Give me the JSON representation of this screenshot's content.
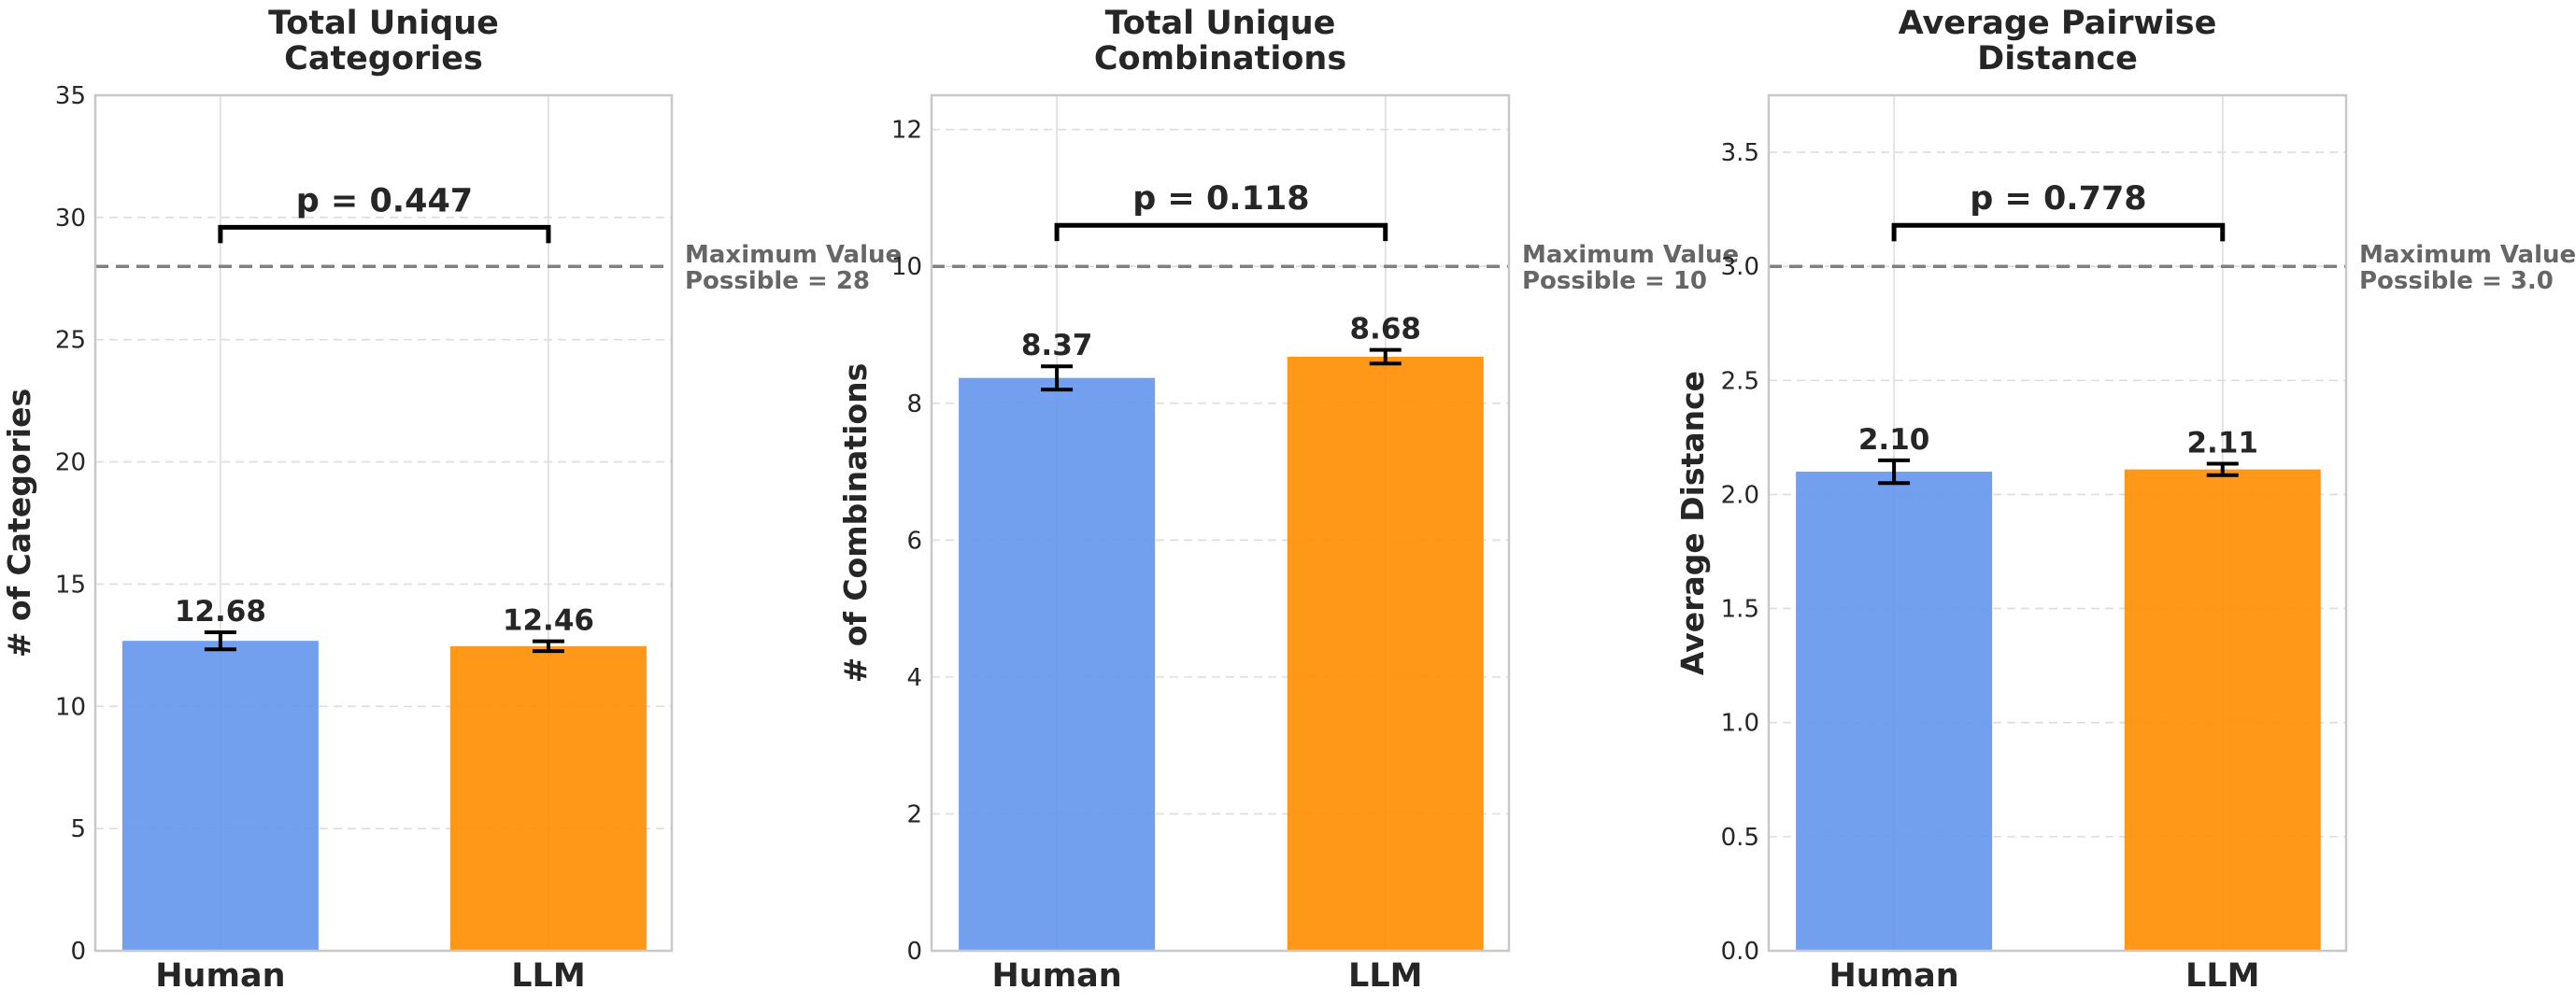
{
  "colors": {
    "human": "#6495ED",
    "llm": "#FF8C00",
    "grid": "#dddddd",
    "frame": "#c8c8c8",
    "text": "#262626",
    "annotation": "#666666"
  },
  "chart_data": [
    {
      "type": "bar",
      "title": [
        "Total Unique",
        "Categories"
      ],
      "ylabel": "# of Categories",
      "xlabel": "",
      "categories": [
        "Human",
        "LLM"
      ],
      "values": [
        12.68,
        12.46
      ],
      "errors": [
        0.35,
        0.2
      ],
      "value_labels": [
        "12.68",
        "12.46"
      ],
      "ylim": [
        0,
        35
      ],
      "yticks": [
        0,
        5,
        10,
        15,
        20,
        25,
        30,
        35
      ],
      "ytick_labels": [
        "0",
        "5",
        "10",
        "15",
        "20",
        "25",
        "30",
        "35"
      ],
      "grid": true,
      "max_line": {
        "value": 28,
        "label": [
          "Maximum Value",
          "Possible = 28"
        ]
      },
      "significance": {
        "text": "p = 0.447",
        "bracket_y": 29.6,
        "drop": 0.65
      }
    },
    {
      "type": "bar",
      "title": [
        "Total Unique",
        "Combinations"
      ],
      "ylabel": "# of Combinations",
      "xlabel": "",
      "categories": [
        "Human",
        "LLM"
      ],
      "values": [
        8.37,
        8.68
      ],
      "errors": [
        0.17,
        0.1
      ],
      "value_labels": [
        "8.37",
        "8.68"
      ],
      "ylim": [
        0,
        12.5
      ],
      "yticks": [
        0,
        2,
        4,
        6,
        8,
        10,
        12
      ],
      "ytick_labels": [
        "0",
        "2",
        "4",
        "6",
        "8",
        "10",
        "12"
      ],
      "grid": true,
      "max_line": {
        "value": 10,
        "label": [
          "Maximum Value",
          "Possible = 10"
        ]
      },
      "significance": {
        "text": "p = 0.118",
        "bracket_y": 10.6,
        "drop": 0.23
      }
    },
    {
      "type": "bar",
      "title": [
        "Average Pairwise",
        "Distance"
      ],
      "ylabel": "Average Distance",
      "xlabel": "",
      "categories": [
        "Human",
        "LLM"
      ],
      "values": [
        2.1,
        2.11
      ],
      "errors": [
        0.05,
        0.025
      ],
      "value_labels": [
        "2.10",
        "2.11"
      ],
      "ylim": [
        0,
        3.75
      ],
      "yticks": [
        0,
        0.5,
        1,
        1.5,
        2,
        2.5,
        3,
        3.5
      ],
      "ytick_labels": [
        "0.0",
        "0.5",
        "1.0",
        "1.5",
        "2.0",
        "2.5",
        "3.0",
        "3.5"
      ],
      "grid": true,
      "max_line": {
        "value": 3,
        "label": [
          "Maximum Value",
          "Possible = 3.0"
        ]
      },
      "significance": {
        "text": "p = 0.778",
        "bracket_y": 3.18,
        "drop": 0.07
      }
    }
  ]
}
